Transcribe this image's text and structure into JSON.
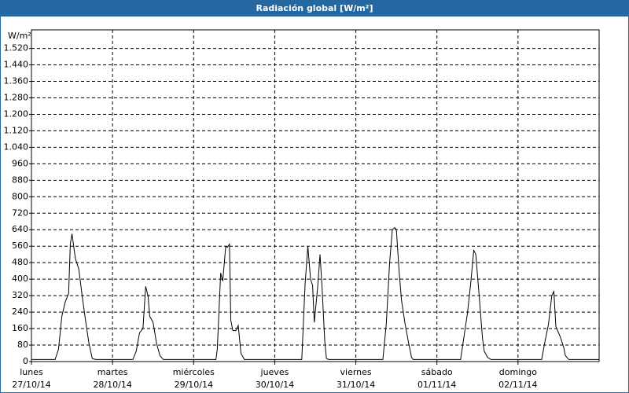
{
  "chart_data": {
    "type": "line",
    "title": "Radiación global [W/m²]",
    "y_label": "W/m²",
    "x": [
      0,
      7,
      8,
      9,
      10,
      11,
      11.5,
      12,
      13,
      14,
      15,
      16,
      17,
      18,
      19,
      30,
      31,
      32,
      33,
      33.8,
      34.5,
      35,
      36,
      37,
      38,
      39,
      54.6,
      55,
      56,
      56.6,
      57.5,
      58,
      58.6,
      59,
      59.6,
      60.5,
      61.2,
      62,
      63,
      80,
      81,
      81.8,
      82.6,
      83.2,
      83.7,
      84.7,
      85.4,
      86,
      86.8,
      87.3,
      88,
      104,
      105,
      106,
      106.8,
      107.5,
      108,
      108.8,
      109.5,
      110.5,
      111.5,
      112.5,
      113,
      127,
      128,
      129,
      130,
      130.9,
      131.5,
      132.5,
      133.5,
      134,
      135,
      136,
      151,
      152,
      153,
      154,
      154.6,
      155.2,
      156.5,
      157.5,
      158,
      159,
      168
    ],
    "series": [
      {
        "name": "Radiación global",
        "color": "#000000",
        "values": [
          10,
          10,
          60,
          220,
          290,
          330,
          570,
          620,
          500,
          450,
          320,
          200,
          90,
          15,
          10,
          10,
          50,
          140,
          160,
          365,
          320,
          220,
          190,
          90,
          30,
          10,
          10,
          60,
          430,
          390,
          560,
          555,
          570,
          200,
          150,
          150,
          175,
          40,
          10,
          10,
          380,
          560,
          400,
          370,
          190,
          360,
          520,
          360,
          100,
          15,
          10,
          10,
          180,
          480,
          640,
          650,
          640,
          440,
          300,
          190,
          100,
          20,
          10,
          10,
          120,
          230,
          380,
          540,
          520,
          320,
          110,
          50,
          20,
          10,
          10,
          100,
          180,
          320,
          340,
          170,
          120,
          70,
          30,
          10,
          10
        ]
      }
    ],
    "xlim": [
      0,
      168
    ],
    "xticks": [
      0,
      24,
      48,
      72,
      96,
      120,
      144
    ],
    "day_labels": [
      "lunes",
      "martes",
      "miércoles",
      "jueves",
      "viernes",
      "sábado",
      "domingo"
    ],
    "date_labels": [
      "27/10/14",
      "28/10/14",
      "29/10/14",
      "30/10/14",
      "31/10/14",
      "01/11/14",
      "02/11/14"
    ],
    "ylim": [
      0,
      1610
    ],
    "yticks": [
      0,
      80,
      160,
      240,
      320,
      400,
      480,
      560,
      640,
      720,
      800,
      880,
      960,
      {
        "value": 1040,
        "label": "1.040"
      },
      {
        "value": 1120,
        "label": "1.120"
      },
      {
        "value": 1200,
        "label": "1.200"
      },
      {
        "value": 1280,
        "label": "1.280"
      },
      {
        "value": 1360,
        "label": "1.360"
      },
      {
        "value": 1440,
        "label": "1.440"
      },
      {
        "value": 1520,
        "label": "1.520"
      }
    ],
    "grid": true
  }
}
